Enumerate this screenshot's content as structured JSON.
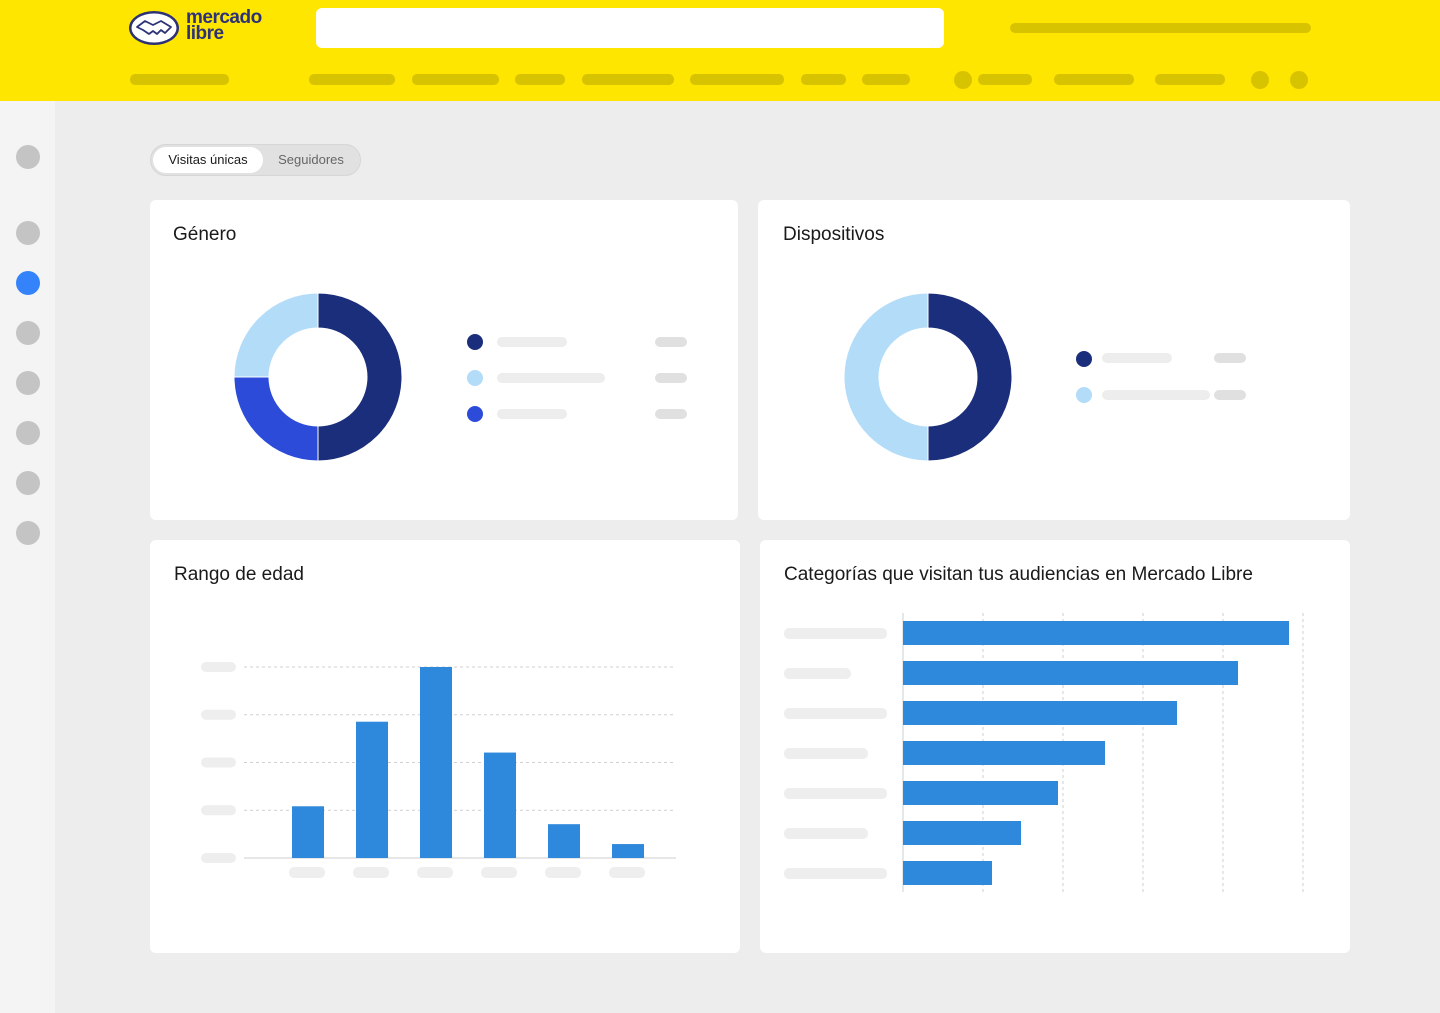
{
  "brand": {
    "logo_text_1": "mercado",
    "logo_text_2": "libre",
    "logo_icon": "handshake-icon"
  },
  "tabs": [
    {
      "label": "Visitas únicas",
      "active": true
    },
    {
      "label": "Seguidores",
      "active": false
    }
  ],
  "colors": {
    "header": "#ffe600",
    "navy": "#1b2e7b",
    "light_blue": "#b3dcf9",
    "royal_blue": "#2b4bd8",
    "bar_blue": "#2e88db",
    "sidebar_active": "#3483fa"
  },
  "cards": {
    "genero": {
      "title": "Género"
    },
    "dispositivos": {
      "title": "Dispositivos"
    },
    "edad": {
      "title": "Rango de edad"
    },
    "categorias": {
      "title": "Categorías que visitan tus audiencias en Mercado Libre"
    }
  },
  "chart_data": [
    {
      "type": "pie",
      "title": "Género",
      "donut": true,
      "values": [
        50,
        25,
        25
      ],
      "colors": [
        "#1b2e7b",
        "#2b4bd8",
        "#b3dcf9"
      ]
    },
    {
      "type": "pie",
      "title": "Dispositivos",
      "donut": true,
      "values": [
        50,
        50
      ],
      "colors": [
        "#1b2e7b",
        "#b3dcf9"
      ]
    },
    {
      "type": "bar",
      "title": "Rango de edad",
      "values": [
        52,
        137,
        192,
        106,
        34,
        14
      ],
      "ylim": [
        0,
        192
      ],
      "grid": true
    },
    {
      "type": "bar",
      "orientation": "horizontal",
      "title": "Categorías que visitan tus audiencias en Mercado Libre",
      "values": [
        386,
        335,
        274,
        202,
        155,
        118,
        89
      ],
      "xlim": [
        0,
        400
      ],
      "grid": true
    }
  ]
}
